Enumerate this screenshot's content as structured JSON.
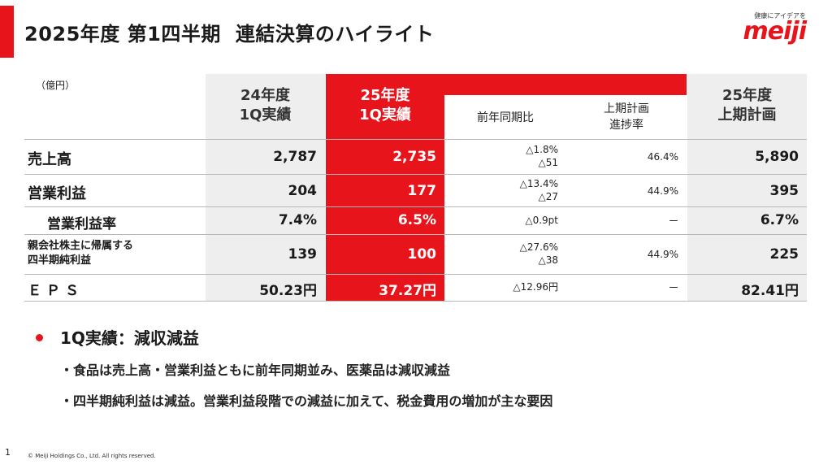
{
  "header": {
    "title_part1": "2025年度 第1四半期",
    "title_part2": "連結決算のハイライト",
    "tagline": "健康にアイデアを",
    "logo_text": "meiji"
  },
  "table": {
    "unit": "（億円）",
    "columns": {
      "fy24_line1": "24年度",
      "fy24_line2": "1Q実績",
      "fy25_line1": "25年度",
      "fy25_line2": "1Q実績",
      "yoy": "前年同期比",
      "progress_line1": "上期計画",
      "progress_line2": "進捗率",
      "plan_line1": "25年度",
      "plan_line2": "上期計画"
    },
    "rows": [
      {
        "label": "売上高",
        "fy24": "2,787",
        "fy25": "2,735",
        "yoy_pct": "△1.8%",
        "yoy_abs": "△51",
        "progress": "46.4%",
        "plan": "5,890"
      },
      {
        "label": "営業利益",
        "fy24": "204",
        "fy25": "177",
        "yoy_pct": "△13.4%",
        "yoy_abs": "△27",
        "progress": "44.9%",
        "plan": "395"
      },
      {
        "label": "営業利益率",
        "fy24": "7.4%",
        "fy25": "6.5%",
        "yoy_pct": "△0.9pt",
        "progress": "ー",
        "plan": "6.7%"
      },
      {
        "label_line1": "親会社株主に帰属する",
        "label_line2": "四半期純利益",
        "fy24": "139",
        "fy25": "100",
        "yoy_pct": "△27.6%",
        "yoy_abs": "△38",
        "progress": "44.9%",
        "plan": "225"
      },
      {
        "label": "ＥＰＳ",
        "fy24": "50.23円",
        "fy25": "37.27円",
        "yoy_pct": "△12.96円",
        "progress": "ー",
        "plan": "82.41円"
      }
    ]
  },
  "summary": {
    "headline": "1Q実績：減収減益",
    "points": [
      "・食品は売上高・営業利益ともに前年同期並み、医薬品は減収減益",
      "・四半期純利益は減益。営業利益段階での減益に加えて、税金費用の増加が主な要因"
    ]
  },
  "footer": {
    "page_number": "1",
    "copyright": "© Meiji Holdings Co., Ltd. All rights reserved."
  },
  "colors": {
    "accent": "#e8141b",
    "column_gray": "#eeeeee"
  }
}
